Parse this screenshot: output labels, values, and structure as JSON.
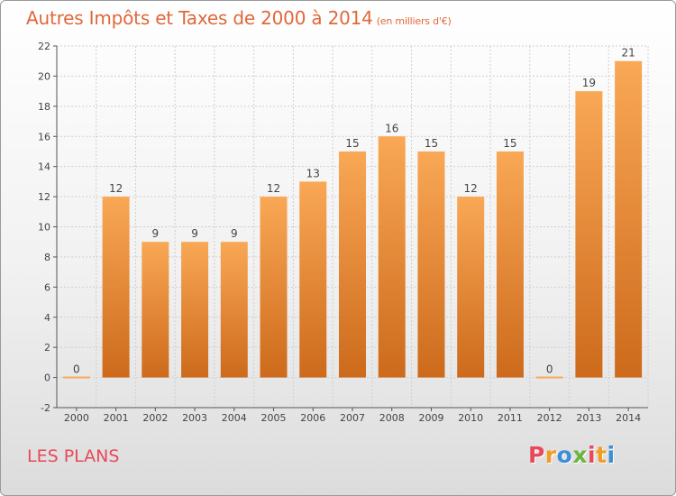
{
  "chart_data": {
    "type": "bar",
    "title": "Autres Impôts et Taxes de 2000 à 2014",
    "subtitle": "(en milliers d'€)",
    "categories": [
      "2000",
      "2001",
      "2002",
      "2003",
      "2004",
      "2005",
      "2006",
      "2007",
      "2008",
      "2009",
      "2010",
      "2011",
      "2012",
      "2013",
      "2014"
    ],
    "values": [
      0,
      12,
      9,
      9,
      9,
      12,
      13,
      15,
      16,
      15,
      12,
      15,
      0,
      19,
      21
    ],
    "ylim": [
      -2,
      22
    ],
    "yticks": [
      -2,
      0,
      2,
      4,
      6,
      8,
      10,
      12,
      14,
      16,
      18,
      20,
      22
    ],
    "xlabel": "",
    "ylabel": "",
    "grid": true,
    "colors": {
      "bar_top": "#f9a855",
      "bar_bottom": "#cd6a1c",
      "title": "#e0683a",
      "commune": "#e8495a",
      "grid": "#cfcfcf"
    }
  },
  "commune": "LES PLANS",
  "brand": {
    "letters": [
      "P",
      "r",
      "o",
      "x",
      "i",
      "t",
      "i"
    ],
    "colors": [
      "#e8495a",
      "#f39c1f",
      "#3c8fd6",
      "#6cb33f",
      "#e8495a",
      "#f39c1f",
      "#3c8fd6"
    ]
  }
}
